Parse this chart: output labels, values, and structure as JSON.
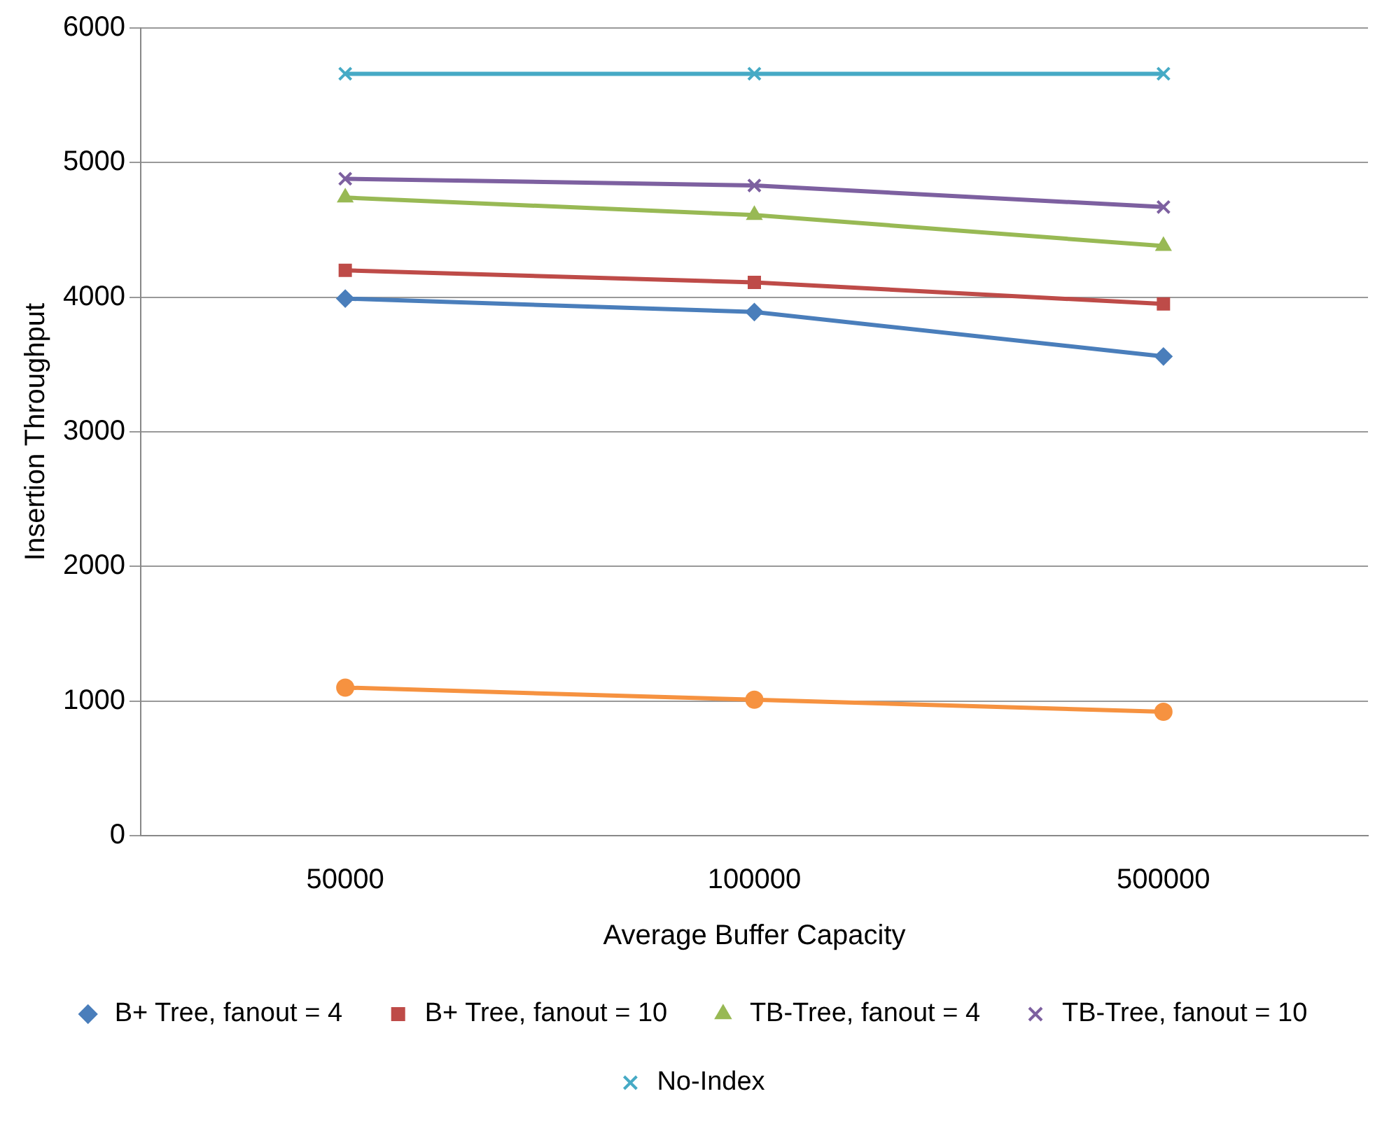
{
  "chart_data": {
    "type": "line",
    "xlabel": "Average Buffer Capacity",
    "ylabel": "Insertion Throughput",
    "categories": [
      "50000",
      "100000",
      "500000"
    ],
    "ylim": [
      0,
      6000
    ],
    "yticks": [
      0,
      1000,
      2000,
      3000,
      4000,
      5000,
      6000
    ],
    "grid": "y",
    "legend": "bottom",
    "line_style": "solid",
    "series": [
      {
        "name": "B+ Tree, fanout = 4",
        "color": "#4a7ebb",
        "marker": "diamond",
        "values": [
          3990,
          3890,
          3560
        ]
      },
      {
        "name": "B+ Tree, fanout = 10",
        "color": "#be4b48",
        "marker": "square",
        "values": [
          4200,
          4110,
          3950
        ]
      },
      {
        "name": "TB-Tree, fanout = 4",
        "color": "#98b954",
        "marker": "triangle",
        "values": [
          4740,
          4610,
          4380
        ]
      },
      {
        "name": "TB-Tree, fanout = 10",
        "color": "#7d60a0",
        "marker": "cross",
        "values": [
          4880,
          4830,
          4670
        ]
      },
      {
        "name": "No-Index",
        "color": "#46aac5",
        "marker": "cross",
        "values": [
          5660,
          5660,
          5660
        ]
      },
      {
        "color": "#f69240",
        "marker": "circle",
        "values": [
          1100,
          1010,
          920
        ]
      }
    ]
  }
}
